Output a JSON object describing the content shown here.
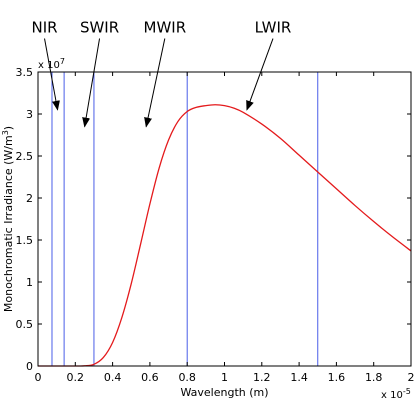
{
  "chart_data": {
    "type": "line",
    "xlabel": "Wavelength (m)",
    "ylabel": "Monochromatic Irradiance (W/m",
    "ylabel_sup": "3",
    "ylabel_tail": ")",
    "x_multiplier": "x 10",
    "x_multiplier_exp": "-5",
    "y_multiplier": "x 10",
    "y_multiplier_exp": "7",
    "xlim": [
      0,
      2
    ],
    "ylim": [
      0,
      3.5
    ],
    "x_ticks": [
      0,
      0.2,
      0.4,
      0.6,
      0.8,
      1,
      1.2,
      1.4,
      1.6,
      1.8,
      2
    ],
    "x_tick_labels": [
      "0",
      "0.2",
      "0.4",
      "0.6",
      "0.8",
      "1",
      "1.2",
      "1.4",
      "1.6",
      "1.8",
      "2"
    ],
    "y_ticks": [
      0,
      0.5,
      1,
      1.5,
      2,
      2.5,
      3,
      3.5
    ],
    "y_tick_labels": [
      "0",
      "0.5",
      "1",
      "1.5",
      "2",
      "2.5",
      "3",
      "3.5"
    ],
    "grid": false,
    "series": [
      {
        "color": "#e41a1c",
        "x": [
          0,
          0.2,
          0.25,
          0.3,
          0.35,
          0.4,
          0.45,
          0.5,
          0.55,
          0.6,
          0.65,
          0.7,
          0.75,
          0.8,
          0.85,
          0.9,
          0.95,
          1.0,
          1.05,
          1.1,
          1.2,
          1.3,
          1.4,
          1.5,
          1.6,
          1.7,
          1.8,
          1.9,
          2.0
        ],
        "y": [
          0,
          0,
          0.002,
          0.02,
          0.1,
          0.28,
          0.58,
          0.98,
          1.45,
          1.93,
          2.36,
          2.69,
          2.91,
          3.03,
          3.08,
          3.1,
          3.11,
          3.1,
          3.07,
          3.02,
          2.88,
          2.71,
          2.51,
          2.31,
          2.11,
          1.91,
          1.72,
          1.54,
          1.37
        ]
      }
    ],
    "vertical_lines": {
      "color": "#4a5ee8",
      "x": [
        0.075,
        0.14,
        0.3,
        0.8,
        1.5
      ]
    },
    "annotations": [
      {
        "text": "NIR",
        "label_x": 0.035,
        "label_y": 3.97,
        "arrow_x": 0.105,
        "arrow_y": 3.05
      },
      {
        "text": "SWIR",
        "label_x": 0.33,
        "label_y": 3.97,
        "arrow_x": 0.25,
        "arrow_y": 2.85
      },
      {
        "text": "MWIR",
        "label_x": 0.68,
        "label_y": 3.97,
        "arrow_x": 0.58,
        "arrow_y": 2.85
      },
      {
        "text": "LWIR",
        "label_x": 1.26,
        "label_y": 3.97,
        "arrow_x": 1.12,
        "arrow_y": 3.05
      }
    ]
  }
}
